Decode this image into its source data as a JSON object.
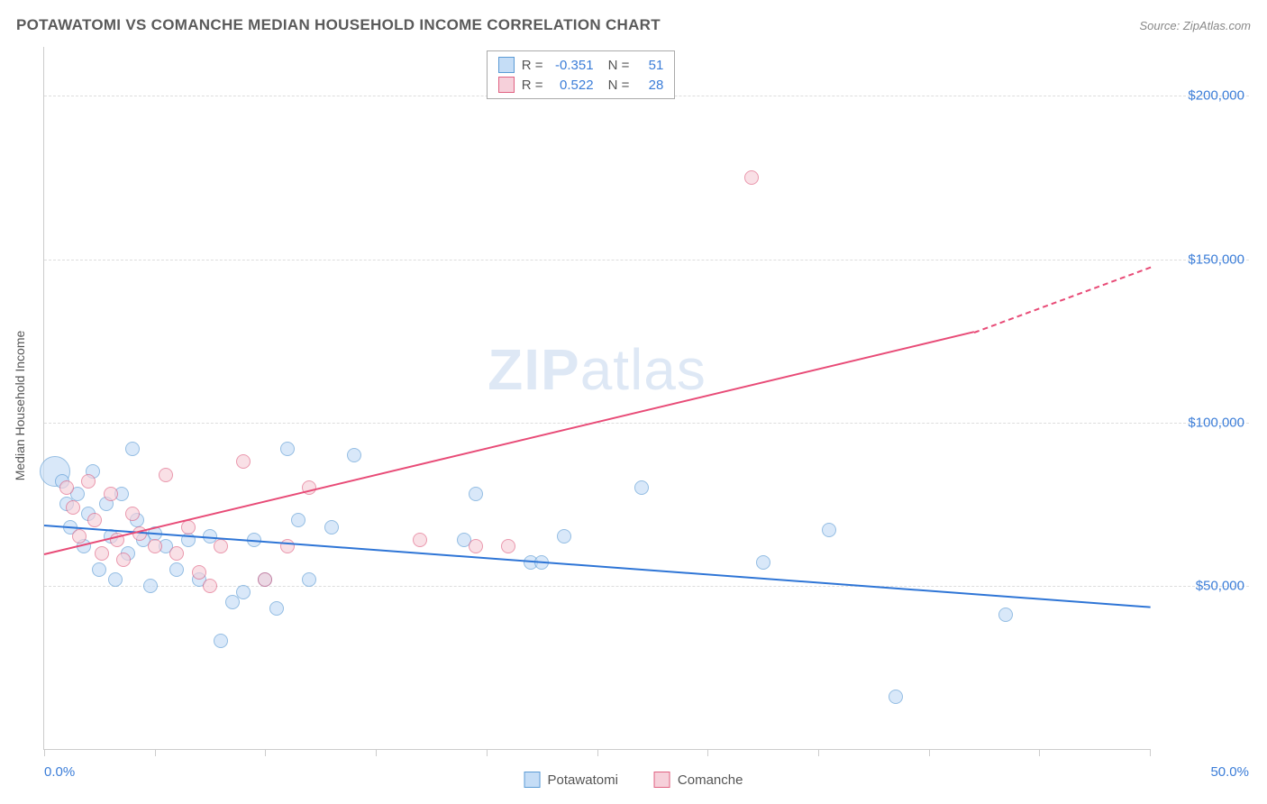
{
  "header": {
    "title": "POTAWATOMI VS COMANCHE MEDIAN HOUSEHOLD INCOME CORRELATION CHART",
    "source": "Source: ZipAtlas.com"
  },
  "chart": {
    "type": "scatter",
    "y_label": "Median Household Income",
    "xlim": [
      0,
      50
    ],
    "ylim": [
      0,
      215000
    ],
    "x_min_label": "0.0%",
    "x_max_label": "50.0%",
    "x_ticks": [
      0,
      5,
      10,
      15,
      20,
      25,
      30,
      35,
      40,
      45,
      50
    ],
    "y_ticks": [
      {
        "value": 50000,
        "label": "$50,000"
      },
      {
        "value": 100000,
        "label": "$100,000"
      },
      {
        "value": 150000,
        "label": "$150,000"
      },
      {
        "value": 200000,
        "label": "$200,000"
      }
    ],
    "grid_color": "#dddddd",
    "axis_color": "#cccccc",
    "background_color": "#ffffff",
    "watermark": {
      "zip": "ZIP",
      "atlas": "atlas"
    },
    "series": [
      {
        "name": "Potawatomi",
        "fill": "#c5ddf6",
        "stroke": "#5b9bd5",
        "fill_opacity": 0.65,
        "marker_radius": 8,
        "trend": {
          "x1": 0,
          "y1": 69000,
          "x2": 50,
          "y2": 44000,
          "color": "#2e75d6",
          "width": 2
        },
        "stats": {
          "r_label": "R =",
          "r": "-0.351",
          "n_label": "N =",
          "n": "51"
        },
        "points": [
          {
            "x": 0.5,
            "y": 85000,
            "r": 17
          },
          {
            "x": 0.8,
            "y": 82000
          },
          {
            "x": 1.0,
            "y": 75000
          },
          {
            "x": 1.2,
            "y": 68000
          },
          {
            "x": 1.5,
            "y": 78000
          },
          {
            "x": 1.8,
            "y": 62000
          },
          {
            "x": 2.0,
            "y": 72000
          },
          {
            "x": 2.2,
            "y": 85000
          },
          {
            "x": 2.5,
            "y": 55000
          },
          {
            "x": 2.8,
            "y": 75000
          },
          {
            "x": 3.0,
            "y": 65000
          },
          {
            "x": 3.2,
            "y": 52000
          },
          {
            "x": 3.5,
            "y": 78000
          },
          {
            "x": 3.8,
            "y": 60000
          },
          {
            "x": 4.0,
            "y": 92000
          },
          {
            "x": 4.2,
            "y": 70000
          },
          {
            "x": 4.5,
            "y": 64000
          },
          {
            "x": 4.8,
            "y": 50000
          },
          {
            "x": 5.0,
            "y": 66000
          },
          {
            "x": 5.5,
            "y": 62000
          },
          {
            "x": 6.0,
            "y": 55000
          },
          {
            "x": 6.5,
            "y": 64000
          },
          {
            "x": 7.0,
            "y": 52000
          },
          {
            "x": 7.5,
            "y": 65000
          },
          {
            "x": 8.0,
            "y": 33000
          },
          {
            "x": 8.5,
            "y": 45000
          },
          {
            "x": 9.0,
            "y": 48000
          },
          {
            "x": 9.5,
            "y": 64000
          },
          {
            "x": 10.0,
            "y": 52000
          },
          {
            "x": 10.5,
            "y": 43000
          },
          {
            "x": 11.0,
            "y": 92000
          },
          {
            "x": 11.5,
            "y": 70000
          },
          {
            "x": 12.0,
            "y": 52000
          },
          {
            "x": 13.0,
            "y": 68000
          },
          {
            "x": 14.0,
            "y": 90000
          },
          {
            "x": 19.0,
            "y": 64000
          },
          {
            "x": 19.5,
            "y": 78000
          },
          {
            "x": 22.0,
            "y": 57000
          },
          {
            "x": 22.5,
            "y": 57000
          },
          {
            "x": 23.5,
            "y": 65000
          },
          {
            "x": 27.0,
            "y": 80000
          },
          {
            "x": 32.5,
            "y": 57000
          },
          {
            "x": 35.5,
            "y": 67000
          },
          {
            "x": 38.5,
            "y": 16000
          },
          {
            "x": 43.5,
            "y": 41000
          }
        ]
      },
      {
        "name": "Comanche",
        "fill": "#f6d0da",
        "stroke": "#e06282",
        "fill_opacity": 0.65,
        "marker_radius": 8,
        "trend": {
          "x1": 0,
          "y1": 60000,
          "x2": 42,
          "y2": 128000,
          "color": "#e84b77",
          "width": 2,
          "extend_to": 50,
          "extend_y": 148000
        },
        "stats": {
          "r_label": "R =",
          "r": "0.522",
          "n_label": "N =",
          "n": "28"
        },
        "points": [
          {
            "x": 1.0,
            "y": 80000
          },
          {
            "x": 1.3,
            "y": 74000
          },
          {
            "x": 1.6,
            "y": 65000
          },
          {
            "x": 2.0,
            "y": 82000
          },
          {
            "x": 2.3,
            "y": 70000
          },
          {
            "x": 2.6,
            "y": 60000
          },
          {
            "x": 3.0,
            "y": 78000
          },
          {
            "x": 3.3,
            "y": 64000
          },
          {
            "x": 3.6,
            "y": 58000
          },
          {
            "x": 4.0,
            "y": 72000
          },
          {
            "x": 4.3,
            "y": 66000
          },
          {
            "x": 5.0,
            "y": 62000
          },
          {
            "x": 5.5,
            "y": 84000
          },
          {
            "x": 6.0,
            "y": 60000
          },
          {
            "x": 6.5,
            "y": 68000
          },
          {
            "x": 7.0,
            "y": 54000
          },
          {
            "x": 7.5,
            "y": 50000
          },
          {
            "x": 8.0,
            "y": 62000
          },
          {
            "x": 9.0,
            "y": 88000
          },
          {
            "x": 10.0,
            "y": 52000
          },
          {
            "x": 11.0,
            "y": 62000
          },
          {
            "x": 12.0,
            "y": 80000
          },
          {
            "x": 17.0,
            "y": 64000
          },
          {
            "x": 19.5,
            "y": 62000
          },
          {
            "x": 21.0,
            "y": 62000
          },
          {
            "x": 32.0,
            "y": 175000
          }
        ]
      }
    ]
  },
  "legend": {
    "items": [
      {
        "label": "Potawatomi",
        "fill": "#c5ddf6",
        "stroke": "#5b9bd5"
      },
      {
        "label": "Comanche",
        "fill": "#f6d0da",
        "stroke": "#e06282"
      }
    ]
  }
}
